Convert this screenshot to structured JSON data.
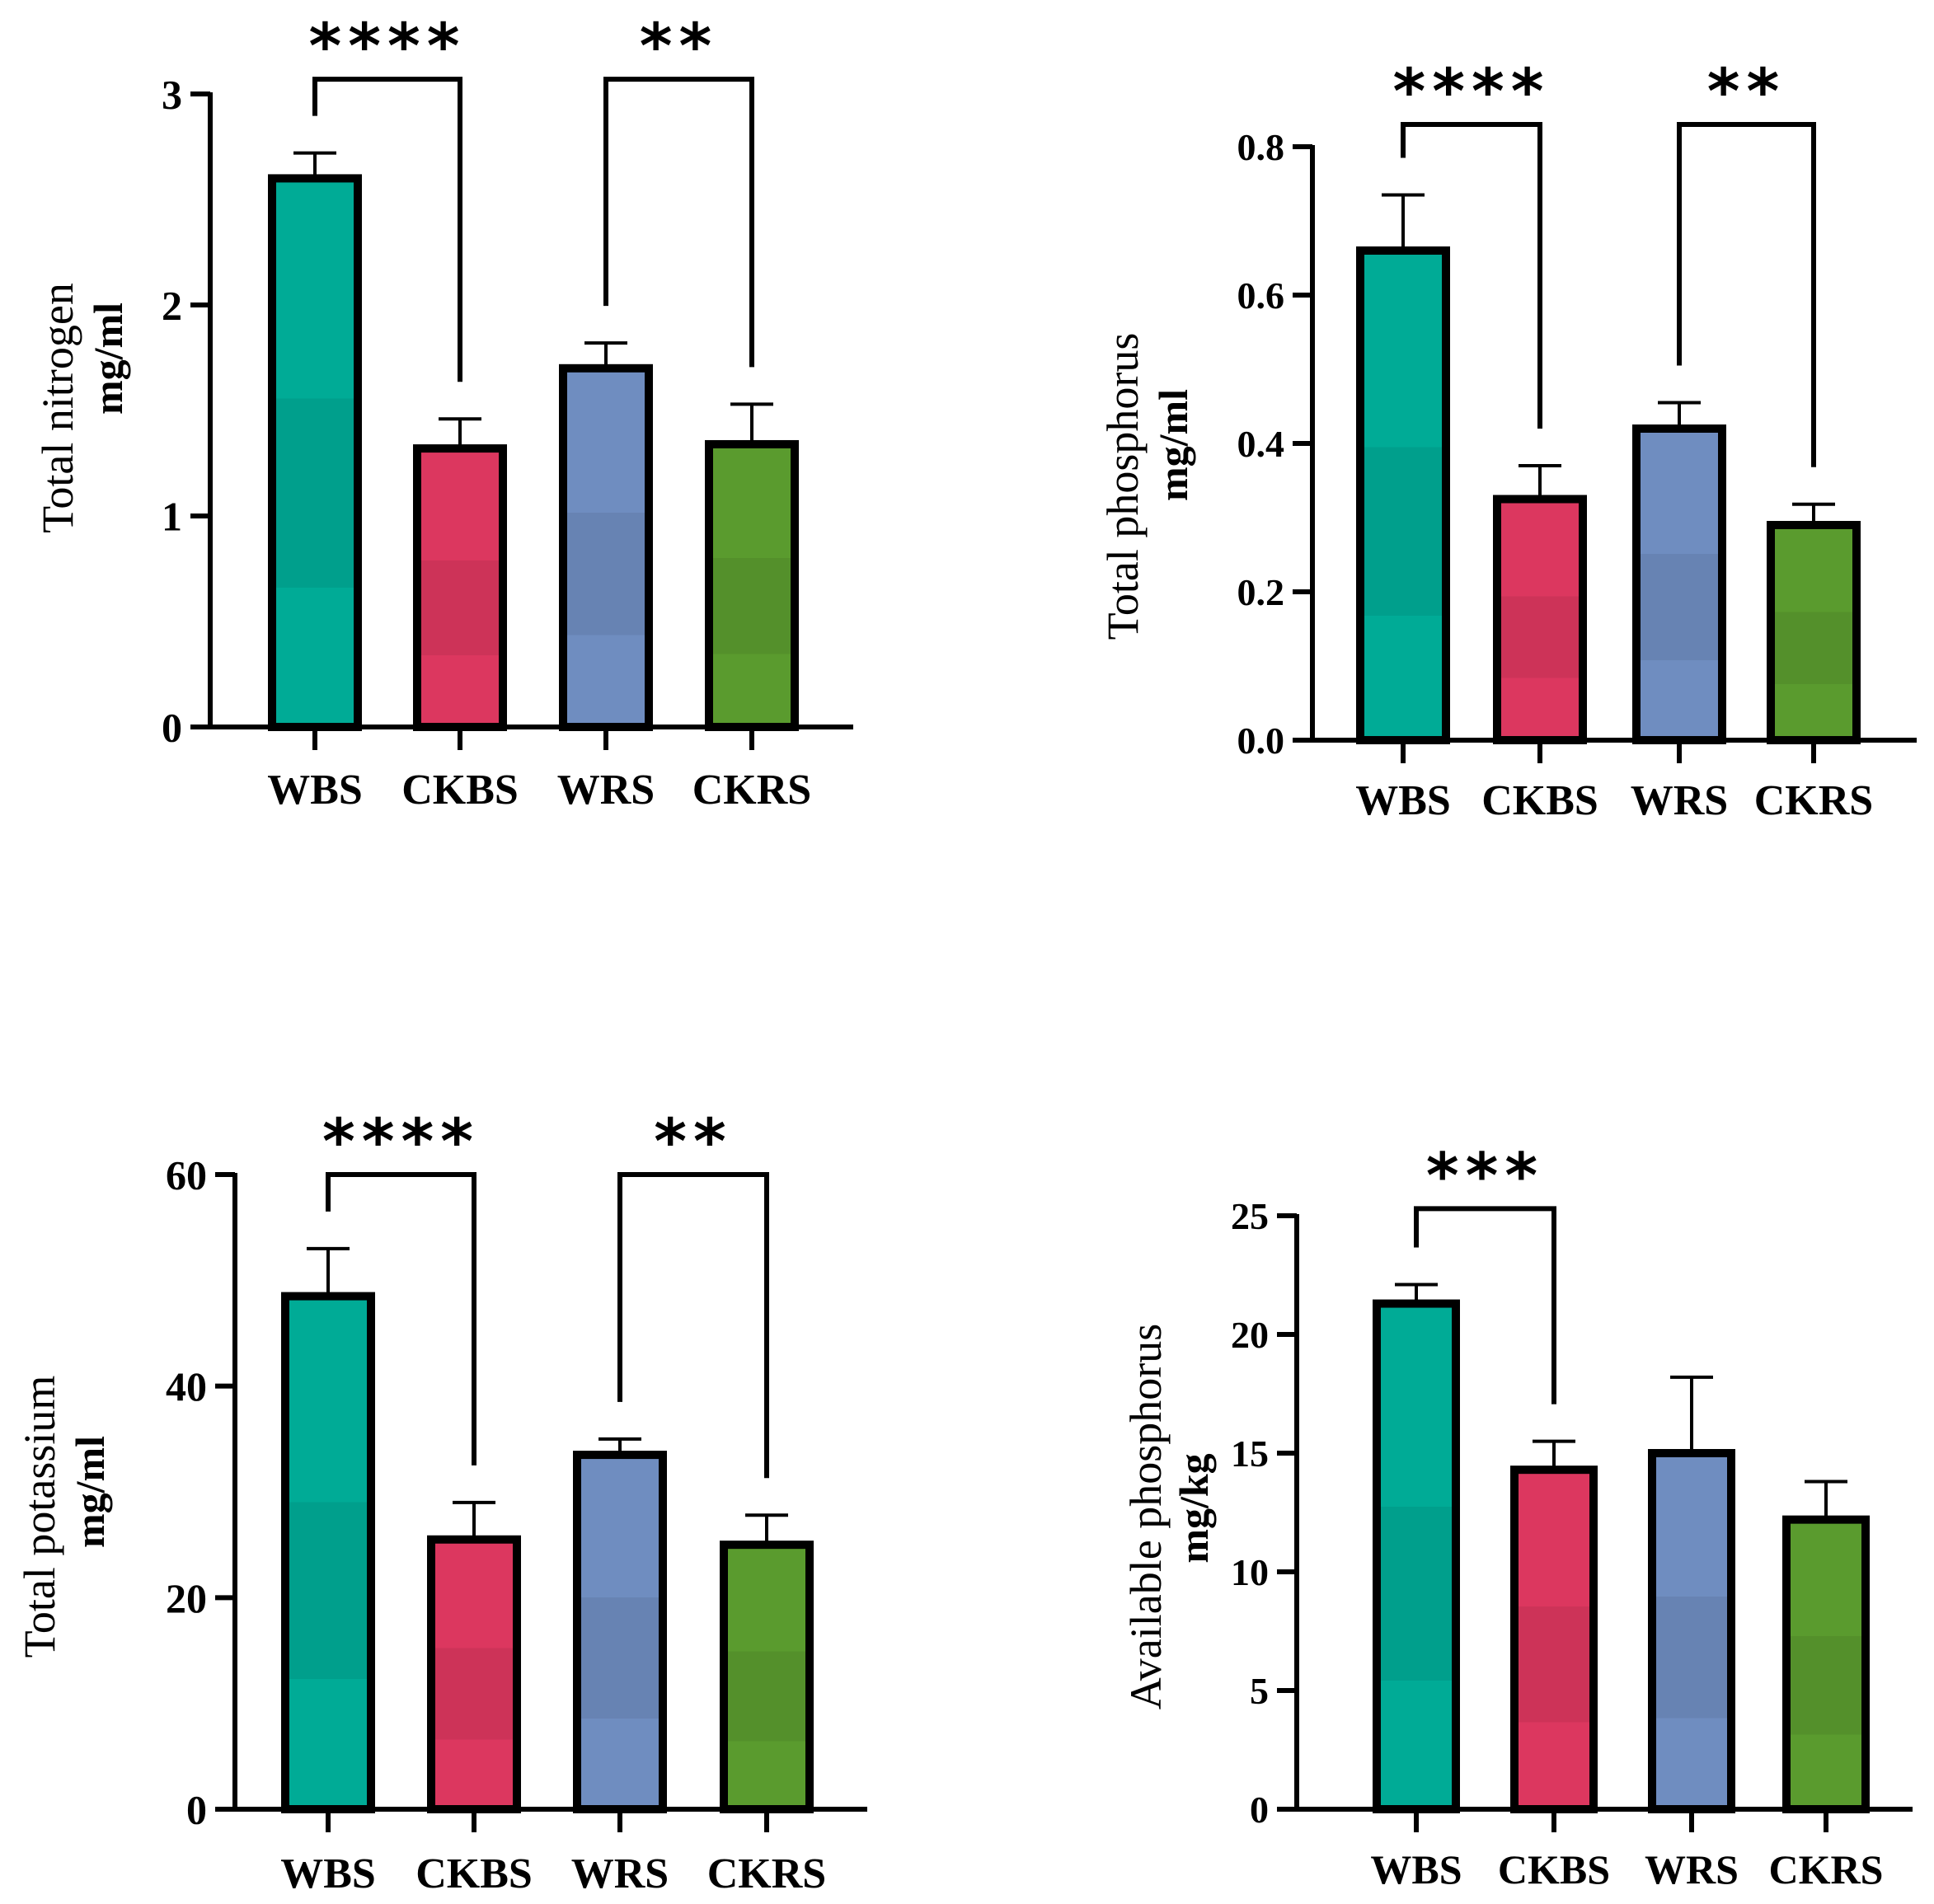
{
  "colors": {
    "WBS": "#00ab96",
    "CKBS": "#dc375f",
    "WRS": "#6f8dc0",
    "CKRS": "#5a9b2e",
    "axis": "#000000"
  },
  "chart_data": [
    {
      "type": "bar",
      "title": "",
      "ylabel": "Total nitrogen",
      "yunit": "mg/ml",
      "xlabel": "",
      "categories": [
        "WBS",
        "CKBS",
        "WRS",
        "CKRS"
      ],
      "values": [
        2.6,
        1.32,
        1.7,
        1.34
      ],
      "errors": [
        0.12,
        0.14,
        0.12,
        0.19
      ],
      "ylim": [
        0,
        3
      ],
      "yticks": [
        0,
        1,
        2,
        3
      ],
      "ytick_labels": [
        "0",
        "1",
        "2",
        "3"
      ],
      "significance": [
        {
          "from": 0,
          "to": 1,
          "label": "****",
          "level": 3.07
        },
        {
          "from": 2,
          "to": 3,
          "label": "**",
          "level": 3.07
        }
      ]
    },
    {
      "type": "bar",
      "title": "",
      "ylabel": "Total phosphorus",
      "yunit": "mg/ml",
      "xlabel": "",
      "categories": [
        "WBS",
        "CKBS",
        "WRS",
        "CKRS"
      ],
      "values": [
        0.66,
        0.325,
        0.42,
        0.29
      ],
      "errors": [
        0.075,
        0.045,
        0.035,
        0.028
      ],
      "ylim": [
        0,
        0.8
      ],
      "yticks": [
        0,
        0.2,
        0.4,
        0.6,
        0.8
      ],
      "ytick_labels": [
        "0.0",
        "0.2",
        "0.4",
        "0.6",
        "0.8"
      ],
      "significance": [
        {
          "from": 0,
          "to": 1,
          "label": "****",
          "level": 0.83
        },
        {
          "from": 2,
          "to": 3,
          "label": "**",
          "level": 0.83
        }
      ]
    },
    {
      "type": "bar",
      "title": "",
      "ylabel": "Total potassium",
      "yunit": "mg/ml",
      "xlabel": "",
      "categories": [
        "WBS",
        "CKBS",
        "WRS",
        "CKRS"
      ],
      "values": [
        48.5,
        25.5,
        33.5,
        25.0
      ],
      "errors": [
        4.5,
        3.5,
        1.5,
        2.8
      ],
      "ylim": [
        0,
        60
      ],
      "yticks": [
        0,
        20,
        40,
        60
      ],
      "ytick_labels": [
        "0",
        "20",
        "40",
        "60"
      ],
      "significance": [
        {
          "from": 0,
          "to": 1,
          "label": "****",
          "level": 60
        },
        {
          "from": 2,
          "to": 3,
          "label": "**",
          "level": 60
        }
      ]
    },
    {
      "type": "bar",
      "title": "",
      "ylabel": "Available phosphorus",
      "yunit": "mg/kg",
      "xlabel": "",
      "categories": [
        "WBS",
        "CKBS",
        "WRS",
        "CKRS"
      ],
      "values": [
        21.3,
        14.3,
        15.0,
        12.2
      ],
      "errors": [
        0.8,
        1.2,
        3.2,
        1.6
      ],
      "ylim": [
        0,
        25
      ],
      "yticks": [
        0,
        5,
        10,
        15,
        20,
        25
      ],
      "ytick_labels": [
        "0",
        "5",
        "10",
        "15",
        "20",
        "25"
      ],
      "significance": [
        {
          "from": 0,
          "to": 1,
          "label": "***",
          "level": 25.3
        }
      ]
    }
  ]
}
